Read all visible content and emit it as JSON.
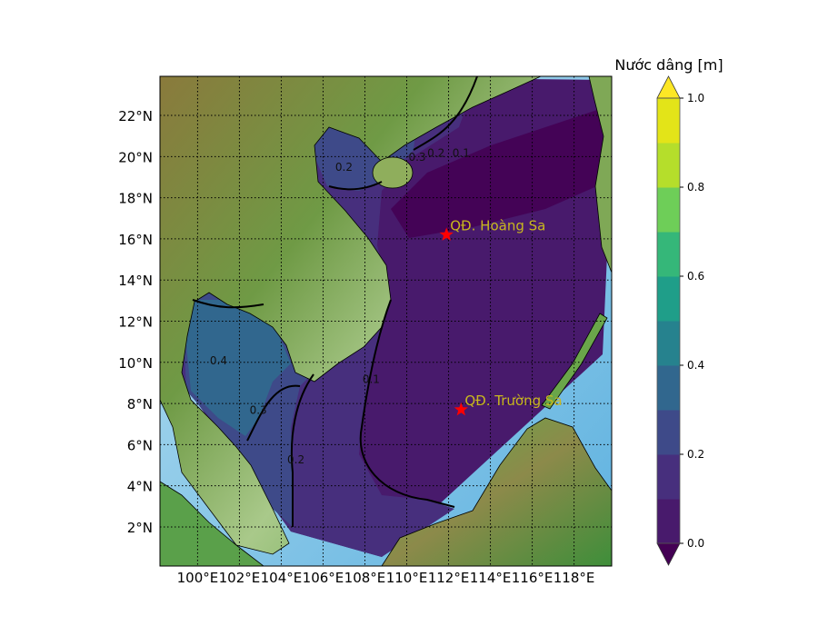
{
  "chart_data": {
    "type": "heatmap",
    "subtype": "filled-contour map",
    "title": "",
    "colorbar": {
      "label": "Nước dâng [m]",
      "levels": [
        0.0,
        0.1,
        0.2,
        0.3,
        0.4,
        0.5,
        0.6,
        0.7,
        0.8,
        0.9,
        1.0
      ],
      "colors": [
        "#481a6c",
        "#472f7d",
        "#3e4a89",
        "#31678e",
        "#26828e",
        "#1f9e89",
        "#35b779",
        "#6ece58",
        "#b5de2b",
        "#e3e418"
      ],
      "under_color": "#440154",
      "over_color": "#fde725",
      "extend": "both",
      "tick_labels": [
        "0.0",
        "0.2",
        "0.4",
        "0.6",
        "0.8",
        "1.0"
      ],
      "tick_values": [
        0.0,
        0.2,
        0.4,
        0.6,
        0.8,
        1.0
      ]
    },
    "xaxis": {
      "tick_values": [
        100,
        102,
        104,
        106,
        108,
        110,
        112,
        114,
        116,
        118
      ],
      "tick_labels": [
        "100°E",
        "102°E",
        "104°E",
        "106°E",
        "108°E",
        "110°E",
        "112°E",
        "114°E",
        "116°E",
        "118°E"
      ],
      "range": [
        98.2,
        119.8
      ]
    },
    "yaxis": {
      "tick_values": [
        2,
        4,
        6,
        8,
        10,
        12,
        14,
        16,
        18,
        20,
        22
      ],
      "tick_labels": [
        "2°N",
        "4°N",
        "6°N",
        "8°N",
        "10°N",
        "12°N",
        "14°N",
        "16°N",
        "18°N",
        "20°N",
        "22°N"
      ],
      "range": [
        0.1,
        23.9
      ]
    },
    "grid": true,
    "contour_labels": [
      {
        "text": "0.2",
        "lon": 107.0,
        "lat": 19.3
      },
      {
        "text": "0.3",
        "lon": 110.5,
        "lat": 19.8
      },
      {
        "text": "0.2",
        "lon": 111.4,
        "lat": 20.0
      },
      {
        "text": "0.1",
        "lon": 112.6,
        "lat": 20.0
      },
      {
        "text": "0.4",
        "lon": 101.0,
        "lat": 9.9
      },
      {
        "text": "0.3",
        "lon": 102.9,
        "lat": 7.5
      },
      {
        "text": "0.2",
        "lon": 104.7,
        "lat": 5.1
      },
      {
        "text": "0.1",
        "lon": 108.3,
        "lat": 9.0
      }
    ],
    "markers": [
      {
        "label": "QĐ. Hoàng Sa",
        "lon": 111.9,
        "lat": 16.2,
        "marker": "star",
        "color": "#ff0000",
        "label_color": "#c9b81e"
      },
      {
        "label": "QĐ. Trường Sa",
        "lon": 112.6,
        "lat": 7.7,
        "marker": "star",
        "color": "#ff0000",
        "label_color": "#c9b81e"
      }
    ]
  }
}
